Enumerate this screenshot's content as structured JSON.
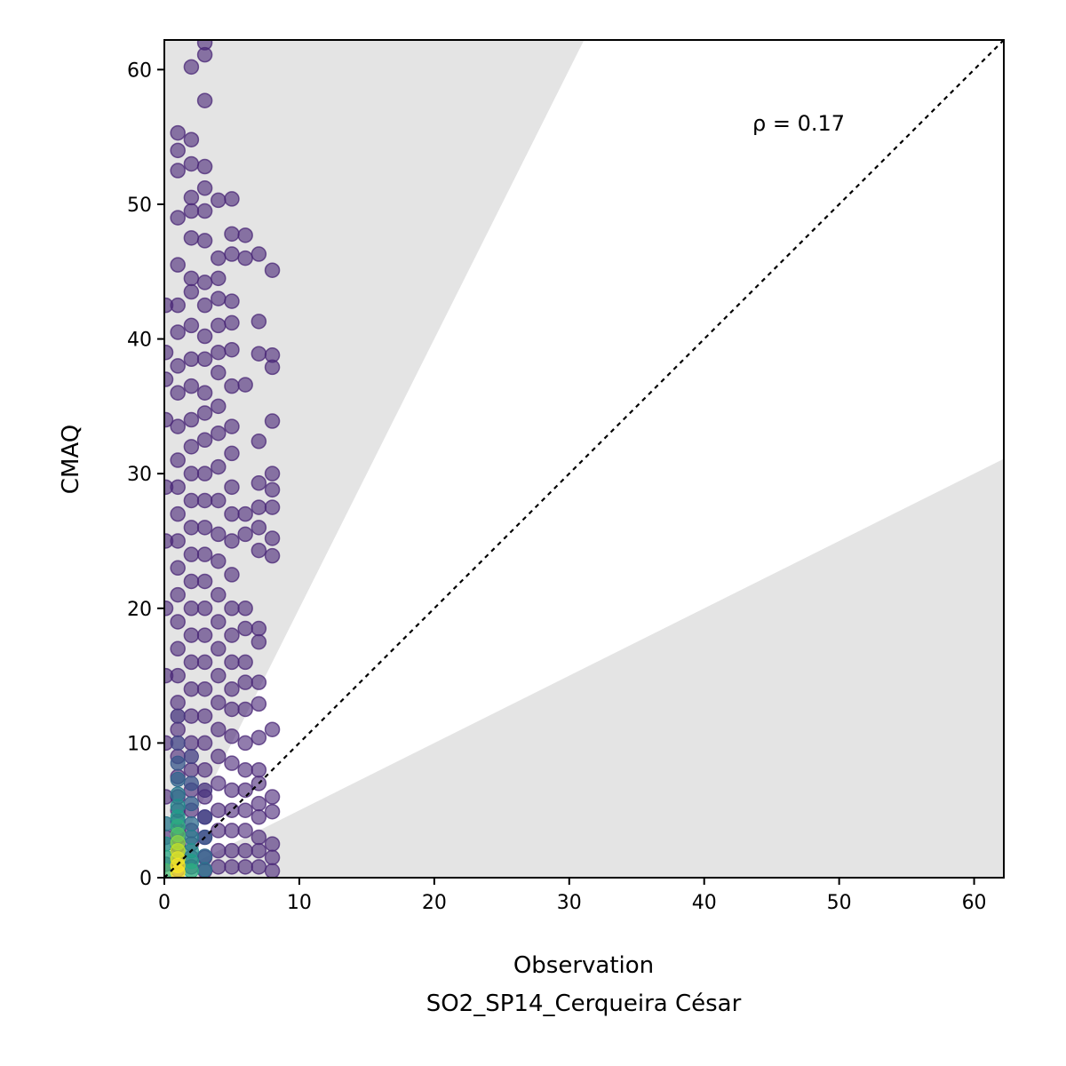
{
  "chart_data": {
    "type": "scatter",
    "xlabel_line1": "Observation",
    "xlabel_line2": "SO2_SP14_Cerqueira César",
    "ylabel": "CMAQ",
    "annotation": "ρ = 0.17",
    "xlim": [
      0,
      62.2
    ],
    "ylim": [
      0,
      62.2
    ],
    "xticks": [
      0,
      10,
      20,
      30,
      40,
      50,
      60
    ],
    "yticks": [
      0,
      10,
      20,
      30,
      40,
      50,
      60
    ],
    "identity_line": true,
    "factor_of_two_band": true,
    "colormap": "viridis (density)",
    "marker_color_sparse": "#482576",
    "shading_color": "#e4e4e4",
    "points": [
      [
        1.0,
        0.6
      ],
      [
        1.0,
        1.2
      ],
      [
        1.0,
        1.8
      ],
      [
        1.0,
        2.4
      ],
      [
        1.0,
        3.0
      ],
      [
        1.0,
        3.5
      ],
      [
        1.0,
        4.2
      ],
      [
        1.0,
        5.0
      ],
      [
        1.0,
        6.0
      ],
      [
        1.0,
        7.5
      ],
      [
        1.0,
        9.0
      ],
      [
        1.0,
        11.0
      ],
      [
        1.0,
        13.0
      ],
      [
        1.0,
        15.0
      ],
      [
        1.0,
        17.0
      ],
      [
        1.0,
        19.0
      ],
      [
        1.0,
        21.0
      ],
      [
        1.0,
        23.0
      ],
      [
        1.0,
        25.0
      ],
      [
        1.0,
        27.0
      ],
      [
        1.0,
        29.0
      ],
      [
        1.0,
        31.0
      ],
      [
        1.0,
        33.5
      ],
      [
        1.0,
        36.0
      ],
      [
        1.0,
        38.0
      ],
      [
        1.0,
        40.5
      ],
      [
        1.0,
        42.5
      ],
      [
        1.0,
        45.5
      ],
      [
        1.0,
        49.0
      ],
      [
        1.0,
        52.5
      ],
      [
        1.0,
        54.0
      ],
      [
        1.0,
        55.3
      ],
      [
        0.1,
        1.0
      ],
      [
        0.1,
        3.0
      ],
      [
        0.1,
        6.0
      ],
      [
        0.1,
        10.0
      ],
      [
        0.1,
        15.0
      ],
      [
        0.1,
        20.0
      ],
      [
        0.1,
        25.0
      ],
      [
        0.1,
        29.0
      ],
      [
        0.1,
        34.0
      ],
      [
        0.1,
        37.0
      ],
      [
        0.1,
        39.0
      ],
      [
        0.1,
        42.5
      ],
      [
        2.0,
        0.8
      ],
      [
        2.0,
        1.5
      ],
      [
        2.0,
        2.5
      ],
      [
        2.0,
        3.5
      ],
      [
        2.0,
        5.0
      ],
      [
        2.0,
        6.5
      ],
      [
        2.0,
        8.0
      ],
      [
        2.0,
        10.0
      ],
      [
        2.0,
        12.0
      ],
      [
        2.0,
        14.0
      ],
      [
        2.0,
        16.0
      ],
      [
        2.0,
        18.0
      ],
      [
        2.0,
        20.0
      ],
      [
        2.0,
        22.0
      ],
      [
        2.0,
        24.0
      ],
      [
        2.0,
        26.0
      ],
      [
        2.0,
        28.0
      ],
      [
        2.0,
        30.0
      ],
      [
        2.0,
        32.0
      ],
      [
        2.0,
        34.0
      ],
      [
        2.0,
        36.5
      ],
      [
        2.0,
        38.5
      ],
      [
        2.0,
        41.0
      ],
      [
        2.0,
        43.5
      ],
      [
        2.0,
        44.5
      ],
      [
        2.0,
        47.5
      ],
      [
        2.0,
        49.5
      ],
      [
        2.0,
        50.5
      ],
      [
        2.0,
        53.0
      ],
      [
        2.0,
        54.8
      ],
      [
        2.0,
        60.2
      ],
      [
        3.0,
        0.5
      ],
      [
        3.0,
        1.5
      ],
      [
        3.0,
        3.0
      ],
      [
        3.0,
        4.5
      ],
      [
        3.0,
        6.0
      ],
      [
        3.0,
        8.0
      ],
      [
        3.0,
        10.0
      ],
      [
        3.0,
        12.0
      ],
      [
        3.0,
        14.0
      ],
      [
        3.0,
        16.0
      ],
      [
        3.0,
        18.0
      ],
      [
        3.0,
        20.0
      ],
      [
        3.0,
        22.0
      ],
      [
        3.0,
        24.0
      ],
      [
        3.0,
        26.0
      ],
      [
        3.0,
        28.0
      ],
      [
        3.0,
        30.0
      ],
      [
        3.0,
        32.5
      ],
      [
        3.0,
        34.5
      ],
      [
        3.0,
        36.0
      ],
      [
        3.0,
        38.5
      ],
      [
        3.0,
        40.2
      ],
      [
        3.0,
        42.5
      ],
      [
        3.0,
        44.2
      ],
      [
        3.0,
        47.3
      ],
      [
        3.0,
        49.5
      ],
      [
        3.0,
        51.2
      ],
      [
        3.0,
        52.8
      ],
      [
        3.0,
        57.7
      ],
      [
        3.0,
        61.1
      ],
      [
        3.0,
        62.0
      ],
      [
        4.0,
        0.8
      ],
      [
        4.0,
        2.0
      ],
      [
        4.0,
        3.5
      ],
      [
        4.0,
        5.0
      ],
      [
        4.0,
        7.0
      ],
      [
        4.0,
        9.0
      ],
      [
        4.0,
        11.0
      ],
      [
        4.0,
        13.0
      ],
      [
        4.0,
        15.0
      ],
      [
        4.0,
        17.0
      ],
      [
        4.0,
        19.0
      ],
      [
        4.0,
        21.0
      ],
      [
        4.0,
        23.5
      ],
      [
        4.0,
        25.5
      ],
      [
        4.0,
        28.0
      ],
      [
        4.0,
        30.5
      ],
      [
        4.0,
        33.0
      ],
      [
        4.0,
        35.0
      ],
      [
        4.0,
        37.5
      ],
      [
        4.0,
        39.0
      ],
      [
        4.0,
        41.0
      ],
      [
        4.0,
        43.0
      ],
      [
        4.0,
        44.5
      ],
      [
        4.0,
        46.0
      ],
      [
        4.0,
        50.3
      ],
      [
        5.0,
        0.8
      ],
      [
        5.0,
        2.0
      ],
      [
        5.0,
        3.5
      ],
      [
        5.0,
        5.0
      ],
      [
        5.0,
        6.5
      ],
      [
        5.0,
        8.5
      ],
      [
        5.0,
        10.5
      ],
      [
        5.0,
        12.5
      ],
      [
        5.0,
        14.0
      ],
      [
        5.0,
        16.0
      ],
      [
        5.0,
        18.0
      ],
      [
        5.0,
        20.0
      ],
      [
        5.0,
        22.5
      ],
      [
        5.0,
        25.0
      ],
      [
        5.0,
        27.0
      ],
      [
        5.0,
        29.0
      ],
      [
        5.0,
        31.5
      ],
      [
        5.0,
        33.5
      ],
      [
        5.0,
        36.5
      ],
      [
        5.0,
        39.2
      ],
      [
        5.0,
        41.2
      ],
      [
        5.0,
        42.8
      ],
      [
        5.0,
        46.3
      ],
      [
        5.0,
        47.8
      ],
      [
        5.0,
        50.4
      ],
      [
        6.0,
        0.8
      ],
      [
        6.0,
        2.0
      ],
      [
        6.0,
        3.5
      ],
      [
        6.0,
        5.0
      ],
      [
        6.0,
        6.5
      ],
      [
        6.0,
        8.0
      ],
      [
        6.0,
        10.0
      ],
      [
        6.0,
        12.5
      ],
      [
        6.0,
        14.5
      ],
      [
        6.0,
        16.0
      ],
      [
        6.0,
        18.5
      ],
      [
        6.0,
        20.0
      ],
      [
        6.0,
        25.5
      ],
      [
        6.0,
        27.0
      ],
      [
        6.0,
        36.6
      ],
      [
        6.0,
        46.0
      ],
      [
        6.0,
        47.7
      ],
      [
        7.0,
        0.8
      ],
      [
        7.0,
        2.0
      ],
      [
        7.0,
        3.0
      ],
      [
        7.0,
        4.5
      ],
      [
        7.0,
        5.5
      ],
      [
        7.0,
        7.0
      ],
      [
        7.0,
        8.0
      ],
      [
        7.0,
        10.4
      ],
      [
        7.0,
        12.9
      ],
      [
        7.0,
        14.5
      ],
      [
        7.0,
        17.5
      ],
      [
        7.0,
        18.5
      ],
      [
        7.0,
        24.3
      ],
      [
        7.0,
        26.0
      ],
      [
        7.0,
        27.5
      ],
      [
        7.0,
        29.3
      ],
      [
        7.0,
        32.4
      ],
      [
        7.0,
        38.9
      ],
      [
        7.0,
        41.3
      ],
      [
        7.0,
        46.3
      ],
      [
        8.0,
        0.5
      ],
      [
        8.0,
        1.5
      ],
      [
        8.0,
        2.5
      ],
      [
        8.0,
        4.9
      ],
      [
        8.0,
        6.0
      ],
      [
        8.0,
        11.0
      ],
      [
        8.0,
        23.9
      ],
      [
        8.0,
        25.2
      ],
      [
        8.0,
        27.5
      ],
      [
        8.0,
        28.8
      ],
      [
        8.0,
        30.0
      ],
      [
        8.0,
        33.9
      ],
      [
        8.0,
        37.9
      ],
      [
        8.0,
        38.8
      ],
      [
        8.0,
        45.1
      ]
    ],
    "dense_points": [
      [
        1.0,
        0.4,
        1.0
      ],
      [
        1.0,
        0.9,
        0.98
      ],
      [
        1.0,
        1.4,
        0.95
      ],
      [
        1.0,
        2.0,
        0.9
      ],
      [
        1.0,
        2.6,
        0.82
      ],
      [
        1.0,
        3.2,
        0.72
      ],
      [
        1.0,
        3.8,
        0.62
      ],
      [
        1.0,
        4.5,
        0.55
      ],
      [
        1.0,
        5.3,
        0.48
      ],
      [
        1.0,
        6.2,
        0.4
      ],
      [
        1.0,
        7.3,
        0.33
      ],
      [
        1.0,
        8.5,
        0.27
      ],
      [
        1.0,
        10.0,
        0.2
      ],
      [
        1.0,
        12.0,
        0.15
      ],
      [
        0.1,
        0.5,
        0.7
      ],
      [
        0.1,
        1.5,
        0.6
      ],
      [
        0.1,
        2.5,
        0.5
      ],
      [
        0.1,
        4.0,
        0.4
      ],
      [
        2.0,
        0.5,
        0.62
      ],
      [
        2.0,
        1.2,
        0.56
      ],
      [
        2.0,
        2.0,
        0.5
      ],
      [
        2.0,
        3.0,
        0.42
      ],
      [
        2.0,
        4.0,
        0.35
      ],
      [
        2.0,
        5.5,
        0.3
      ],
      [
        2.0,
        7.0,
        0.25
      ],
      [
        2.0,
        9.0,
        0.18
      ],
      [
        3.0,
        0.6,
        0.38
      ],
      [
        3.0,
        1.6,
        0.33
      ],
      [
        3.0,
        3.0,
        0.27
      ],
      [
        3.0,
        4.5,
        0.2
      ],
      [
        3.0,
        6.5,
        0.14
      ]
    ]
  }
}
